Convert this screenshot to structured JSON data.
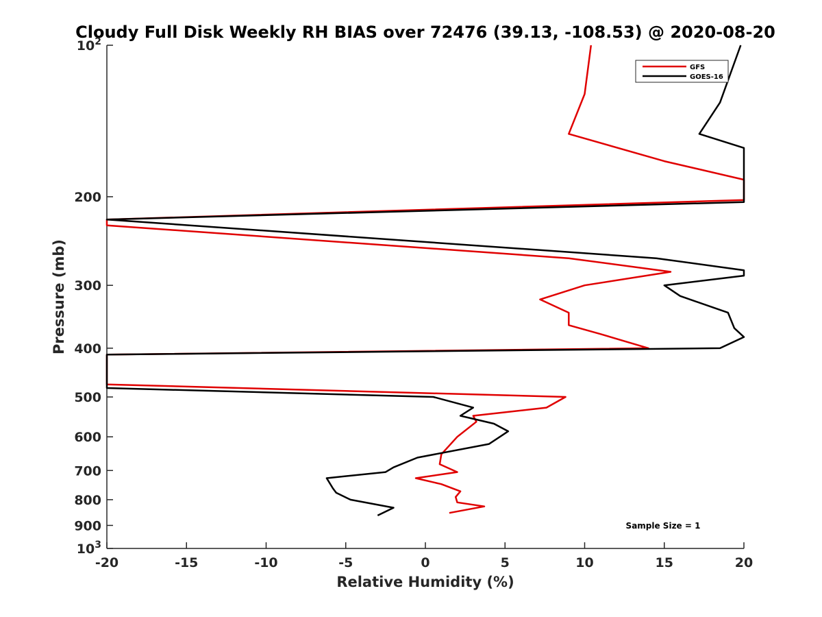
{
  "chart_data": {
    "type": "line",
    "title": "Cloudy Full Disk Weekly RH BIAS over 72476 (39.13, -108.53) @ 2020-08-20",
    "xlabel": "Relative Humidity (%)",
    "ylabel": "Pressure (mb)",
    "xlim": [
      -20,
      20
    ],
    "ylim": [
      100,
      1000
    ],
    "y_scale": "log",
    "y_direction": "reversed",
    "x_ticks": [
      "-20",
      "-15",
      "-10",
      "-5",
      "0",
      "5",
      "10",
      "15",
      "20"
    ],
    "y_ticks": [
      {
        "value": 100,
        "base": "10",
        "exp": "2"
      },
      {
        "value": 200,
        "label": "200"
      },
      {
        "value": 300,
        "label": "300"
      },
      {
        "value": 400,
        "label": "400"
      },
      {
        "value": 500,
        "label": "500"
      },
      {
        "value": 600,
        "label": "600"
      },
      {
        "value": 700,
        "label": "700"
      },
      {
        "value": 800,
        "label": "800"
      },
      {
        "value": 900,
        "label": "900"
      },
      {
        "value": 1000,
        "base": "10",
        "exp": "3"
      }
    ],
    "grid": false,
    "legend_position": "top-right",
    "annotation": "Sample Size = 1",
    "series": [
      {
        "name": "GFS",
        "color": "#e00000",
        "points": [
          {
            "x": 10.4,
            "y": 100
          },
          {
            "x": 10.0,
            "y": 125
          },
          {
            "x": 9.0,
            "y": 150
          },
          {
            "x": 15.0,
            "y": 170
          },
          {
            "x": 20.0,
            "y": 185
          },
          {
            "x": 20.0,
            "y": 203
          },
          {
            "x": -20.0,
            "y": 222
          },
          {
            "x": -20.0,
            "y": 228
          },
          {
            "x": 9.0,
            "y": 265
          },
          {
            "x": 15.4,
            "y": 282
          },
          {
            "x": 10.0,
            "y": 300
          },
          {
            "x": 7.2,
            "y": 320
          },
          {
            "x": 9.0,
            "y": 340
          },
          {
            "x": 9.0,
            "y": 360
          },
          {
            "x": 11.0,
            "y": 375
          },
          {
            "x": 14.0,
            "y": 400
          },
          {
            "x": -20.0,
            "y": 412
          },
          {
            "x": -20.0,
            "y": 472
          },
          {
            "x": 8.8,
            "y": 500
          },
          {
            "x": 7.6,
            "y": 525
          },
          {
            "x": 3.0,
            "y": 545
          },
          {
            "x": 3.2,
            "y": 560
          },
          {
            "x": 2.0,
            "y": 600
          },
          {
            "x": 1.0,
            "y": 650
          },
          {
            "x": 0.9,
            "y": 680
          },
          {
            "x": 2.0,
            "y": 705
          },
          {
            "x": -0.6,
            "y": 725
          },
          {
            "x": 1.0,
            "y": 745
          },
          {
            "x": 2.2,
            "y": 770
          },
          {
            "x": 1.9,
            "y": 790
          },
          {
            "x": 2.0,
            "y": 810
          },
          {
            "x": 3.7,
            "y": 825
          },
          {
            "x": 1.5,
            "y": 850
          }
        ]
      },
      {
        "name": "GOES-16",
        "color": "#000000",
        "points": [
          {
            "x": 19.8,
            "y": 100
          },
          {
            "x": 18.5,
            "y": 130
          },
          {
            "x": 17.2,
            "y": 150
          },
          {
            "x": 20.0,
            "y": 160
          },
          {
            "x": 20.0,
            "y": 205
          },
          {
            "x": -20.0,
            "y": 222
          },
          {
            "x": 14.5,
            "y": 265
          },
          {
            "x": 20.0,
            "y": 280
          },
          {
            "x": 20.0,
            "y": 287
          },
          {
            "x": 15.0,
            "y": 300
          },
          {
            "x": 16.0,
            "y": 315
          },
          {
            "x": 19.0,
            "y": 340
          },
          {
            "x": 19.4,
            "y": 365
          },
          {
            "x": 20.0,
            "y": 380
          },
          {
            "x": 18.5,
            "y": 400
          },
          {
            "x": -20.0,
            "y": 412
          },
          {
            "x": -20.0,
            "y": 480
          },
          {
            "x": 0.5,
            "y": 500
          },
          {
            "x": 3.0,
            "y": 525
          },
          {
            "x": 2.2,
            "y": 545
          },
          {
            "x": 4.3,
            "y": 565
          },
          {
            "x": 5.2,
            "y": 585
          },
          {
            "x": 4.0,
            "y": 620
          },
          {
            "x": -0.5,
            "y": 660
          },
          {
            "x": -2.0,
            "y": 690
          },
          {
            "x": -2.5,
            "y": 705
          },
          {
            "x": -6.2,
            "y": 725
          },
          {
            "x": -5.8,
            "y": 760
          },
          {
            "x": -5.6,
            "y": 775
          },
          {
            "x": -4.7,
            "y": 800
          },
          {
            "x": -2.0,
            "y": 830
          },
          {
            "x": -3.0,
            "y": 860
          }
        ]
      }
    ]
  }
}
